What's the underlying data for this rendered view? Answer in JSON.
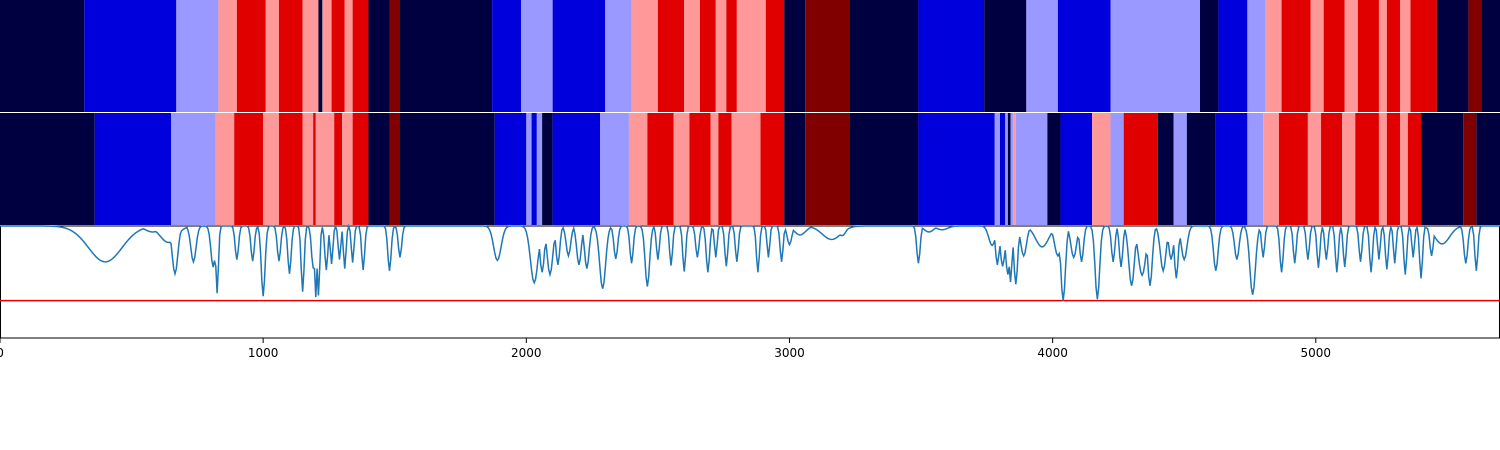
{
  "chart_data": {
    "type": "heatmap",
    "title": "",
    "xlabel": "",
    "ylabel": "",
    "xlim": [
      0,
      5700
    ],
    "xticks": [
      0,
      1000,
      2000,
      3000,
      4000,
      5000
    ],
    "xtick_labels": [
      "0",
      "1000",
      "2000",
      "3000",
      "4000",
      "5000"
    ],
    "palette": {
      "0": "#000040",
      "1": "#0000dd",
      "2": "#9999ff",
      "3": "#ff9999",
      "4": "#e00000",
      "5": "#800000"
    },
    "rows": [
      {
        "segments": [
          [
            0,
            320,
            0
          ],
          [
            320,
            670,
            1
          ],
          [
            670,
            830,
            2
          ],
          [
            830,
            900,
            3
          ],
          [
            900,
            1010,
            4
          ],
          [
            1010,
            1060,
            3
          ],
          [
            1060,
            1150,
            4
          ],
          [
            1150,
            1210,
            3
          ],
          [
            1210,
            1225,
            0
          ],
          [
            1225,
            1260,
            3
          ],
          [
            1260,
            1310,
            4
          ],
          [
            1310,
            1340,
            3
          ],
          [
            1340,
            1400,
            4
          ],
          [
            1400,
            1480,
            0
          ],
          [
            1480,
            1520,
            5
          ],
          [
            1520,
            1870,
            0
          ],
          [
            1870,
            1980,
            1
          ],
          [
            1980,
            2100,
            2
          ],
          [
            2100,
            2300,
            1
          ],
          [
            2300,
            2400,
            2
          ],
          [
            2400,
            2500,
            3
          ],
          [
            2500,
            2600,
            4
          ],
          [
            2600,
            2660,
            3
          ],
          [
            2660,
            2720,
            4
          ],
          [
            2720,
            2760,
            3
          ],
          [
            2760,
            2800,
            4
          ],
          [
            2800,
            2910,
            3
          ],
          [
            2910,
            2980,
            4
          ],
          [
            2980,
            3060,
            0
          ],
          [
            3060,
            3230,
            5
          ],
          [
            3230,
            3490,
            0
          ],
          [
            3490,
            3740,
            1
          ],
          [
            3740,
            3900,
            0
          ],
          [
            3900,
            4020,
            2
          ],
          [
            4020,
            4220,
            1
          ],
          [
            4220,
            4560,
            2
          ],
          [
            4560,
            4630,
            0
          ],
          [
            4630,
            4740,
            1
          ],
          [
            4740,
            4810,
            2
          ],
          [
            4810,
            4870,
            3
          ],
          [
            4870,
            4980,
            4
          ],
          [
            4980,
            5030,
            3
          ],
          [
            5030,
            5110,
            4
          ],
          [
            5110,
            5160,
            3
          ],
          [
            5160,
            5240,
            4
          ],
          [
            5240,
            5270,
            3
          ],
          [
            5270,
            5320,
            4
          ],
          [
            5320,
            5360,
            3
          ],
          [
            5360,
            5460,
            4
          ],
          [
            5460,
            5580,
            0
          ],
          [
            5580,
            5630,
            5
          ],
          [
            5630,
            5700,
            0
          ]
        ]
      },
      {
        "segments": [
          [
            0,
            360,
            0
          ],
          [
            360,
            650,
            1
          ],
          [
            650,
            820,
            2
          ],
          [
            820,
            890,
            3
          ],
          [
            890,
            1000,
            4
          ],
          [
            1000,
            1060,
            3
          ],
          [
            1060,
            1150,
            4
          ],
          [
            1150,
            1190,
            3
          ],
          [
            1190,
            1200,
            4
          ],
          [
            1200,
            1270,
            3
          ],
          [
            1270,
            1300,
            4
          ],
          [
            1300,
            1340,
            3
          ],
          [
            1340,
            1400,
            4
          ],
          [
            1400,
            1480,
            0
          ],
          [
            1480,
            1520,
            5
          ],
          [
            1520,
            1880,
            0
          ],
          [
            1880,
            2000,
            1
          ],
          [
            2000,
            2020,
            2
          ],
          [
            2020,
            2040,
            1
          ],
          [
            2040,
            2060,
            2
          ],
          [
            2060,
            2100,
            0
          ],
          [
            2100,
            2280,
            1
          ],
          [
            2280,
            2390,
            2
          ],
          [
            2390,
            2460,
            3
          ],
          [
            2460,
            2560,
            4
          ],
          [
            2560,
            2620,
            3
          ],
          [
            2620,
            2700,
            4
          ],
          [
            2700,
            2730,
            3
          ],
          [
            2730,
            2780,
            4
          ],
          [
            2780,
            2890,
            3
          ],
          [
            2890,
            2980,
            4
          ],
          [
            2980,
            3060,
            0
          ],
          [
            3060,
            3230,
            5
          ],
          [
            3230,
            3490,
            0
          ],
          [
            3490,
            3780,
            1
          ],
          [
            3780,
            3800,
            2
          ],
          [
            3800,
            3820,
            1
          ],
          [
            3820,
            3830,
            2
          ],
          [
            3830,
            3840,
            0
          ],
          [
            3840,
            3850,
            2
          ],
          [
            3850,
            3860,
            3
          ],
          [
            3860,
            3980,
            2
          ],
          [
            3980,
            4030,
            0
          ],
          [
            4030,
            4150,
            1
          ],
          [
            4150,
            4220,
            3
          ],
          [
            4220,
            4270,
            2
          ],
          [
            4270,
            4400,
            4
          ],
          [
            4400,
            4460,
            0
          ],
          [
            4460,
            4510,
            2
          ],
          [
            4510,
            4620,
            0
          ],
          [
            4620,
            4740,
            1
          ],
          [
            4740,
            4800,
            2
          ],
          [
            4800,
            4860,
            3
          ],
          [
            4860,
            4970,
            4
          ],
          [
            4970,
            5020,
            3
          ],
          [
            5020,
            5100,
            4
          ],
          [
            5100,
            5150,
            3
          ],
          [
            5150,
            5240,
            4
          ],
          [
            5240,
            5270,
            3
          ],
          [
            5270,
            5320,
            4
          ],
          [
            5320,
            5350,
            3
          ],
          [
            5350,
            5400,
            4
          ],
          [
            5400,
            5560,
            0
          ],
          [
            5560,
            5610,
            5
          ],
          [
            5610,
            5700,
            0
          ]
        ]
      }
    ],
    "line": {
      "color": "#1f77b4",
      "ylim": [
        -0.5,
        1.0
      ],
      "threshold": 0.0,
      "threshold_color": "#e00000",
      "baseline": 1.0,
      "dips": [
        [
          400,
          0.52,
          90
        ],
        [
          580,
          0.92,
          40
        ],
        [
          640,
          0.78,
          45
        ],
        [
          665,
          0.36,
          15
        ],
        [
          735,
          0.52,
          14
        ],
        [
          810,
          0.45,
          12
        ],
        [
          825,
          0.1,
          7
        ],
        [
          900,
          0.55,
          9
        ],
        [
          960,
          0.53,
          9
        ],
        [
          1000,
          0.06,
          10
        ],
        [
          1060,
          0.53,
          9
        ],
        [
          1100,
          0.36,
          9
        ],
        [
          1150,
          0.12,
          8
        ],
        [
          1190,
          0.44,
          9
        ],
        [
          1200,
          0.05,
          7
        ],
        [
          1210,
          0.07,
          7
        ],
        [
          1240,
          0.41,
          8
        ],
        [
          1260,
          0.49,
          7
        ],
        [
          1290,
          0.55,
          7
        ],
        [
          1310,
          0.43,
          7
        ],
        [
          1340,
          0.51,
          7
        ],
        [
          1380,
          0.41,
          8
        ],
        [
          1480,
          0.4,
          9
        ],
        [
          1520,
          0.58,
          9
        ],
        [
          1890,
          0.54,
          20
        ],
        [
          2030,
          0.24,
          20
        ],
        [
          2060,
          0.38,
          12
        ],
        [
          2090,
          0.35,
          15
        ],
        [
          2120,
          0.48,
          10
        ],
        [
          2160,
          0.6,
          12
        ],
        [
          2200,
          0.48,
          12
        ],
        [
          2230,
          0.43,
          12
        ],
        [
          2290,
          0.16,
          16
        ],
        [
          2340,
          0.56,
          10
        ],
        [
          2400,
          0.5,
          9
        ],
        [
          2460,
          0.19,
          12
        ],
        [
          2500,
          0.55,
          8
        ],
        [
          2550,
          0.47,
          8
        ],
        [
          2600,
          0.39,
          8
        ],
        [
          2650,
          0.58,
          9
        ],
        [
          2690,
          0.38,
          9
        ],
        [
          2720,
          0.58,
          7
        ],
        [
          2760,
          0.46,
          8
        ],
        [
          2800,
          0.52,
          8
        ],
        [
          2880,
          0.38,
          8
        ],
        [
          2920,
          0.58,
          7
        ],
        [
          2970,
          0.52,
          8
        ],
        [
          3000,
          0.75,
          12
        ],
        [
          3040,
          0.88,
          30
        ],
        [
          3160,
          0.82,
          50
        ],
        [
          3200,
          0.87,
          20
        ],
        [
          3490,
          0.5,
          9
        ],
        [
          3530,
          0.92,
          25
        ],
        [
          3580,
          0.95,
          30
        ],
        [
          3770,
          0.74,
          18
        ],
        [
          3790,
          0.48,
          10
        ],
        [
          3810,
          0.46,
          12
        ],
        [
          3830,
          0.35,
          12
        ],
        [
          3840,
          0.25,
          8
        ],
        [
          3860,
          0.22,
          10
        ],
        [
          3890,
          0.6,
          15
        ],
        [
          3960,
          0.72,
          35
        ],
        [
          4020,
          0.6,
          18
        ],
        [
          4040,
          0.0,
          12
        ],
        [
          4080,
          0.58,
          15
        ],
        [
          4110,
          0.52,
          10
        ],
        [
          4170,
          0.02,
          12
        ],
        [
          4230,
          0.52,
          9
        ],
        [
          4260,
          0.45,
          9
        ],
        [
          4300,
          0.2,
          15
        ],
        [
          4340,
          0.34,
          20
        ],
        [
          4370,
          0.2,
          12
        ],
        [
          4420,
          0.4,
          15
        ],
        [
          4450,
          0.55,
          12
        ],
        [
          4470,
          0.3,
          10
        ],
        [
          4500,
          0.55,
          15
        ],
        [
          4620,
          0.4,
          12
        ],
        [
          4700,
          0.55,
          12
        ],
        [
          4760,
          0.08,
          15
        ],
        [
          4800,
          0.58,
          8
        ],
        [
          4870,
          0.38,
          9
        ],
        [
          4920,
          0.5,
          8
        ],
        [
          4970,
          0.55,
          8
        ],
        [
          5010,
          0.44,
          8
        ],
        [
          5040,
          0.55,
          8
        ],
        [
          5080,
          0.38,
          8
        ],
        [
          5110,
          0.45,
          8
        ],
        [
          5170,
          0.52,
          8
        ],
        [
          5210,
          0.38,
          8
        ],
        [
          5240,
          0.55,
          7
        ],
        [
          5270,
          0.42,
          8
        ],
        [
          5300,
          0.5,
          7
        ],
        [
          5340,
          0.35,
          8
        ],
        [
          5370,
          0.58,
          7
        ],
        [
          5400,
          0.3,
          8
        ],
        [
          5440,
          0.6,
          9
        ],
        [
          5480,
          0.76,
          40
        ],
        [
          5570,
          0.5,
          10
        ],
        [
          5610,
          0.4,
          8
        ]
      ]
    }
  }
}
